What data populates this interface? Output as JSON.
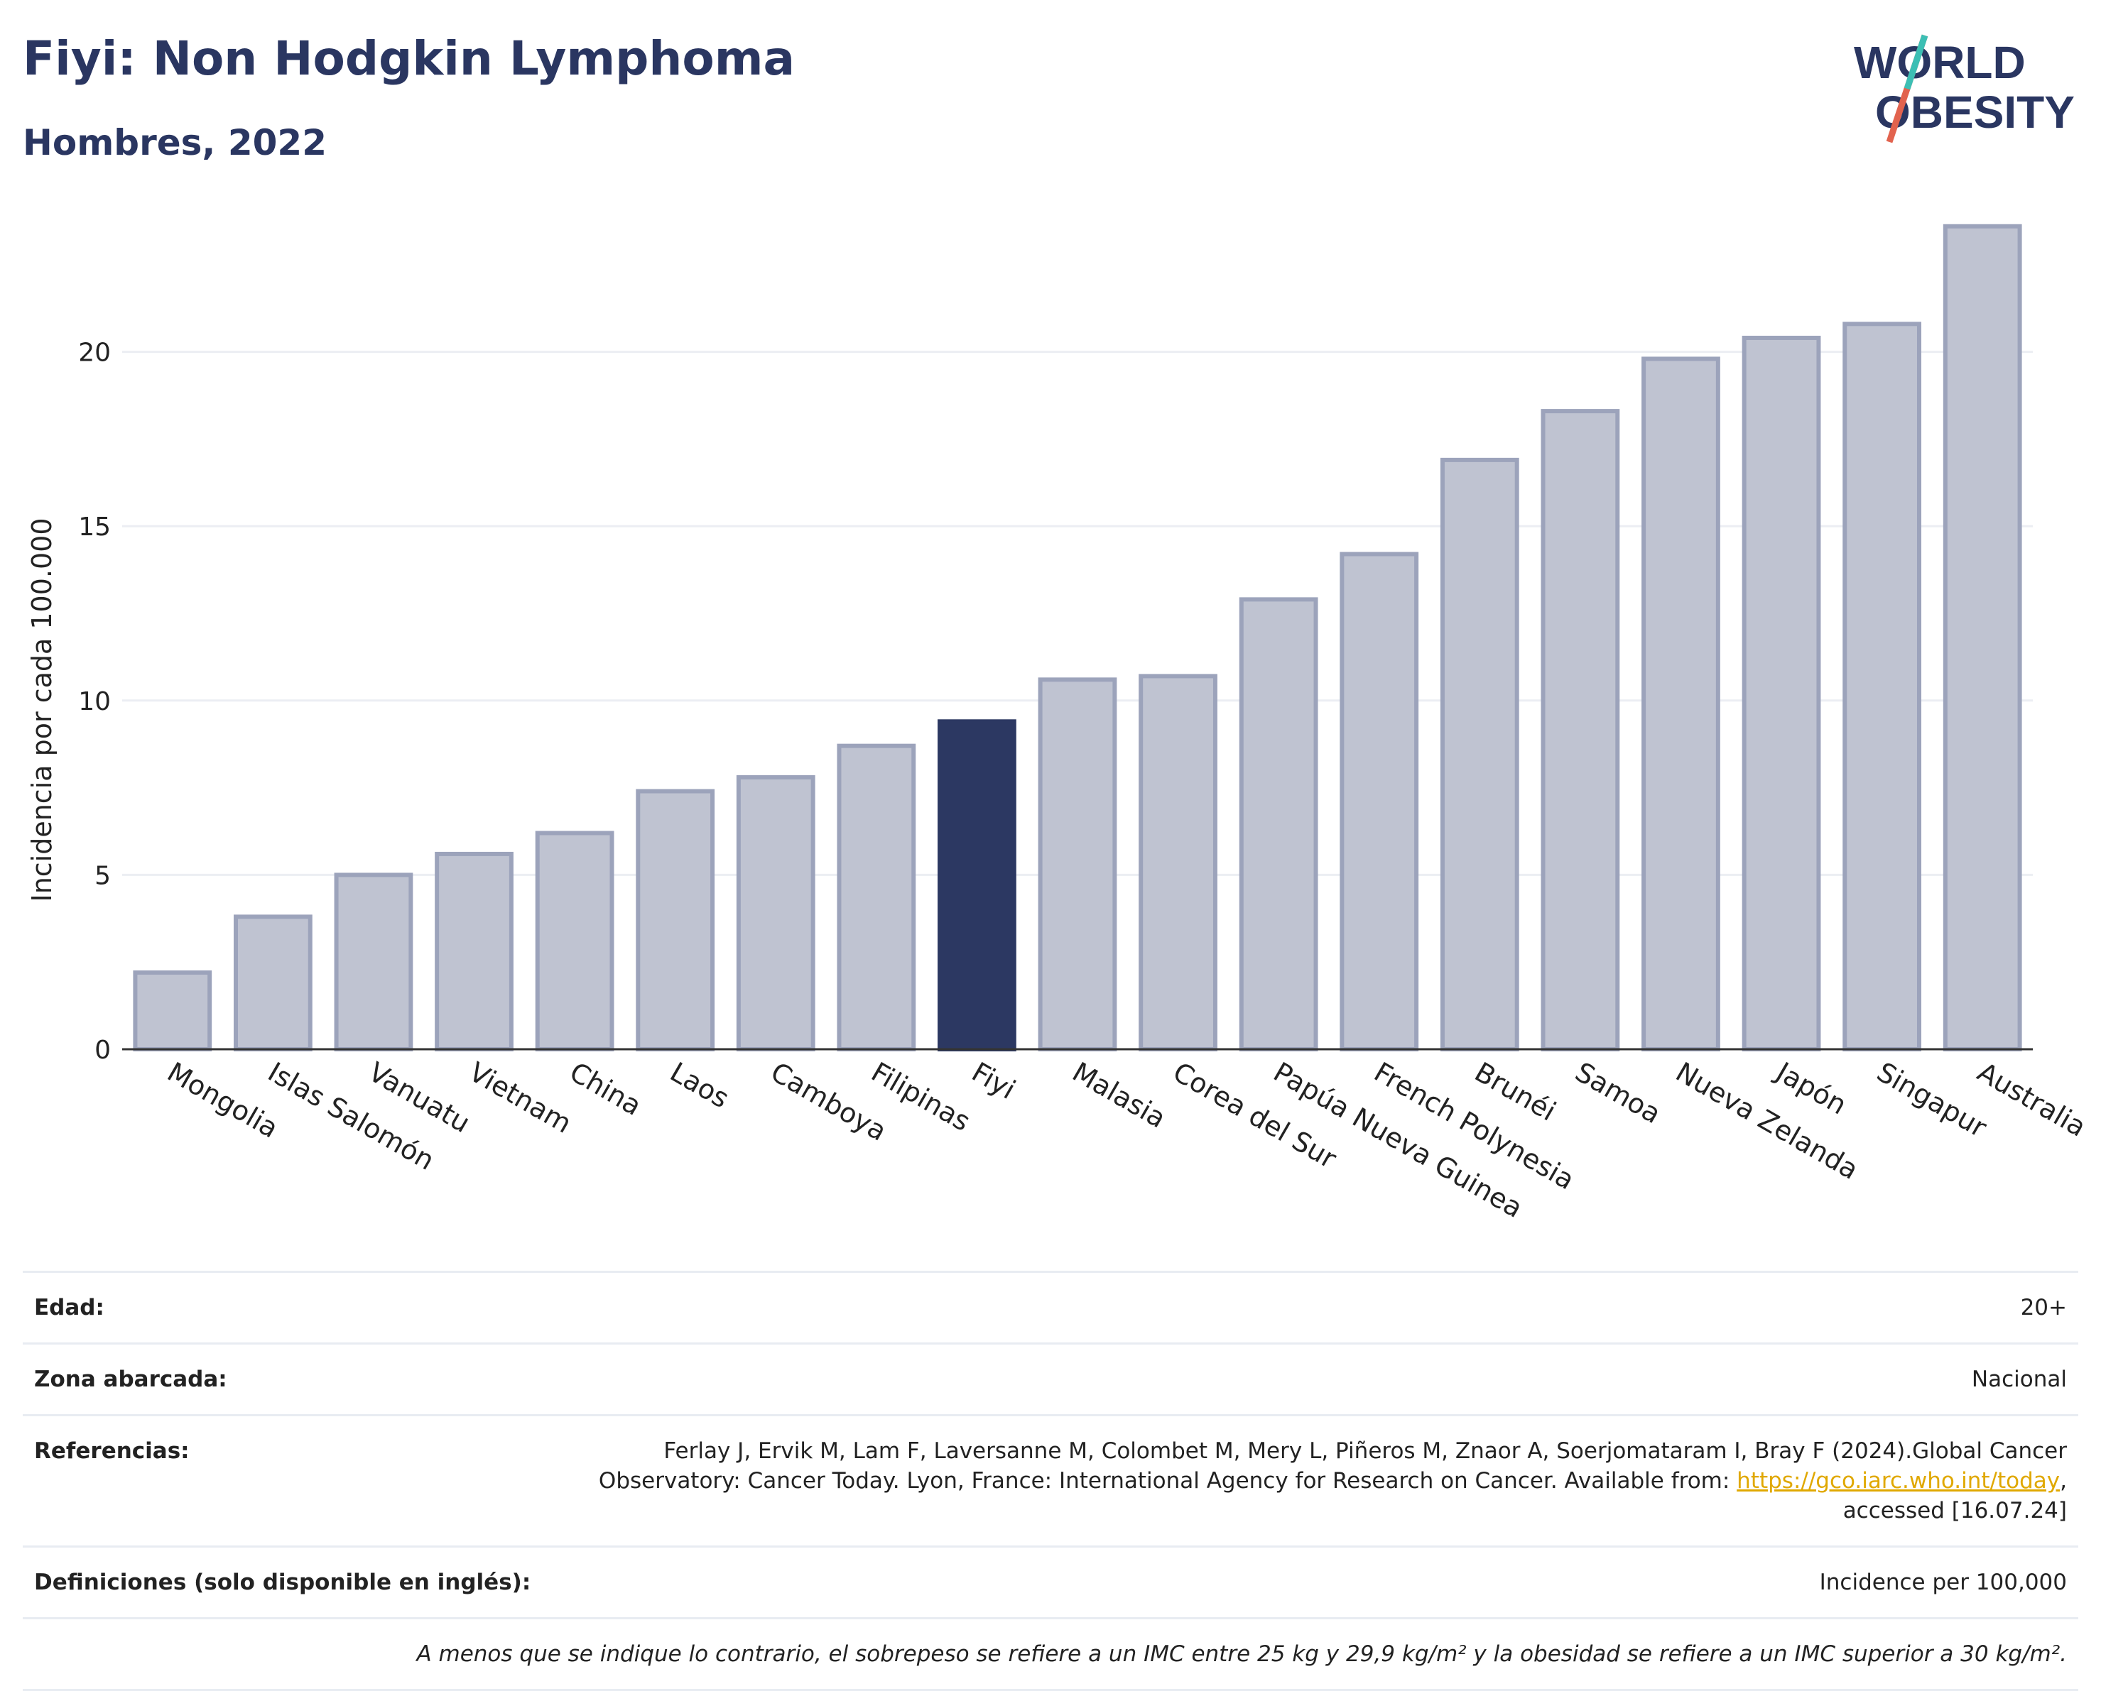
{
  "header": {
    "title": "Fiyi: Non Hodgkin Lymphoma",
    "subtitle": "Hombres, 2022"
  },
  "logo": {
    "line1": "WORLD",
    "line2": "OBESITY"
  },
  "chart_data": {
    "type": "bar",
    "ylabel": "Incidencia por cada 100.000",
    "ylim": [
      0,
      25
    ],
    "yticks": [
      0,
      5,
      10,
      15,
      20
    ],
    "grid": true,
    "highlight": "Fiyi",
    "categories": [
      "Mongolia",
      "Islas Salomón",
      "Vanuatu",
      "Vietnam",
      "China",
      "Laos",
      "Camboya",
      "Filipinas",
      "Fiyi",
      "Malasia",
      "Corea del Sur",
      "Papúa Nueva Guinea",
      "French Polynesia",
      "Brunéi",
      "Samoa",
      "Nueva Zelanda",
      "Japón",
      "Singapur",
      "Australia"
    ],
    "values": [
      2.2,
      3.8,
      5.0,
      5.6,
      6.2,
      7.4,
      7.8,
      8.7,
      9.4,
      10.6,
      10.7,
      12.9,
      14.2,
      16.9,
      18.3,
      19.8,
      20.4,
      20.8,
      23.6
    ],
    "colors": {
      "bar": "#bfc3d1",
      "bar_border": "#9ca3bb",
      "highlight": "#2c3862",
      "axis": "#333333",
      "grid": "#eceef3"
    }
  },
  "meta": {
    "age_label": "Edad:",
    "age_value": "20+",
    "coverage_label": "Zona abarcada:",
    "coverage_value": "Nacional",
    "references_label": "Referencias:",
    "references_line1": "Ferlay J, Ervik M, Lam F, Laversanne M, Colombet M, Mery L, Piñeros M, Znaor A, Soerjomataram I, Bray F (2024).Global Cancer",
    "references_line2_pre": "Observatory: Cancer Today. Lyon, France: International Agency for Research on Cancer. Available from: ",
    "references_link": "https://gco.iarc.who.int/today",
    "references_line2_post": ",",
    "references_line3": "accessed [16.07.24]",
    "definitions_label": "Definiciones (solo disponible en inglés):",
    "definitions_value": "Incidence per 100,000",
    "note": "A menos que se indique lo contrario, el sobrepeso se refiere a un IMC entre 25 kg y 29,9 kg/m² y la obesidad se refiere a un IMC superior a 30 kg/m²."
  }
}
